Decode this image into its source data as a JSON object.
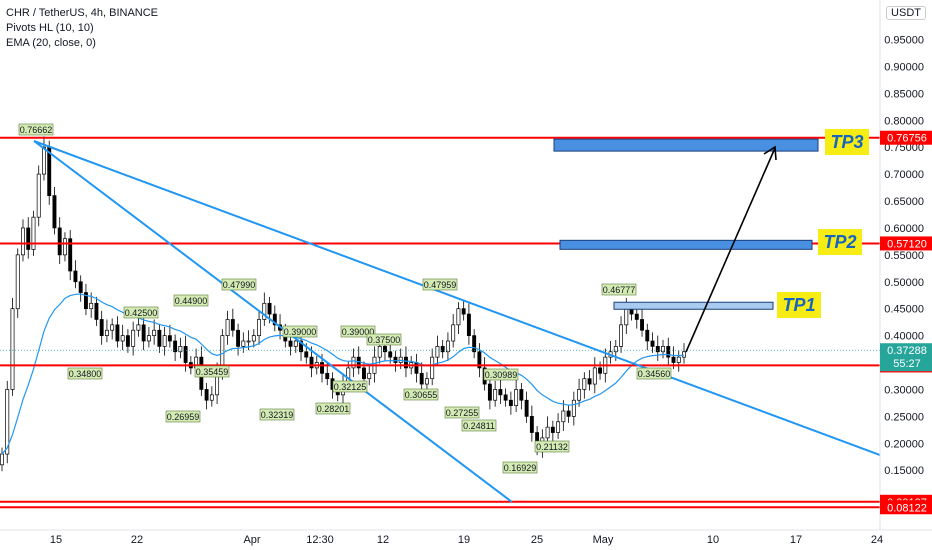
{
  "header": {
    "symbol_line": "CHR / TetherUS, 4h, BINANCE",
    "indicator_1": "Pivots HL (10, 10)",
    "indicator_2": "EMA (20, close, 0)",
    "currency_button": "USDT"
  },
  "colors": {
    "candle": "#000000",
    "ema": "#2196f3",
    "trendline": "#2196f3",
    "level_line": "#ff0000",
    "pivot_label_bg": "#d4ecb4",
    "tp_box_fill": "#4a90e2",
    "tp_label_bg": "#f7ec13",
    "tp_label_text": "#1565c0",
    "current_price_bg": "#26a69a"
  },
  "chart_data": {
    "type": "candlestick",
    "y_axis": {
      "ticks": [
        "0.95000",
        "0.90000",
        "0.85000",
        "0.80000",
        "0.75000",
        "0.70000",
        "0.65000",
        "0.60000",
        "0.55000",
        "0.50000",
        "0.45000",
        "0.40000",
        "0.35000",
        "0.30000",
        "0.25000",
        "0.20000",
        "0.15000"
      ],
      "ylim": [
        0.08,
        1.0
      ]
    },
    "x_axis": {
      "ticks": [
        "15",
        "22",
        "Apr",
        "12:30",
        "12",
        "19",
        "25",
        "May",
        "10",
        "17",
        "24"
      ]
    },
    "price_levels": [
      {
        "label": "0.76756",
        "value": 0.76756
      },
      {
        "label": "0.57120",
        "value": 0.5712
      },
      {
        "label": "0.34463",
        "value": 0.34463
      },
      {
        "label": "0.09137",
        "value": 0.09137
      },
      {
        "label": "0.08122",
        "value": 0.08122
      }
    ],
    "current_price": {
      "label": "0.37288",
      "countdown": "55:27",
      "value": 0.37288
    },
    "pivot_labels": [
      "0.76662",
      "0.42500",
      "0.34800",
      "0.44900",
      "0.35459",
      "0.26959",
      "0.47990",
      "0.39000",
      "0.32319",
      "0.28201",
      "0.39000",
      "0.32125",
      "0.37500",
      "0.30655",
      "0.47959",
      "0.27255",
      "0.30989",
      "0.24811",
      "0.21132",
      "0.16929",
      "0.46777",
      "0.34560"
    ],
    "targets": [
      "TP1",
      "TP2",
      "TP3"
    ],
    "close_series": [
      0.18,
      0.3,
      0.45,
      0.55,
      0.6,
      0.56,
      0.62,
      0.7,
      0.75,
      0.66,
      0.6,
      0.55,
      0.58,
      0.52,
      0.5,
      0.48,
      0.45,
      0.46,
      0.43,
      0.4,
      0.41,
      0.42,
      0.39,
      0.4,
      0.38,
      0.41,
      0.42,
      0.39,
      0.4,
      0.41,
      0.38,
      0.4,
      0.39,
      0.37,
      0.38,
      0.35,
      0.34,
      0.36,
      0.3,
      0.28,
      0.29,
      0.33,
      0.4,
      0.43,
      0.41,
      0.38,
      0.39,
      0.39,
      0.4,
      0.43,
      0.46,
      0.44,
      0.42,
      0.41,
      0.39,
      0.38,
      0.39,
      0.37,
      0.36,
      0.34,
      0.35,
      0.33,
      0.32,
      0.3,
      0.29,
      0.31,
      0.34,
      0.36,
      0.34,
      0.32,
      0.33,
      0.36,
      0.38,
      0.37,
      0.36,
      0.35,
      0.36,
      0.34,
      0.35,
      0.33,
      0.31,
      0.32,
      0.36,
      0.38,
      0.37,
      0.39,
      0.42,
      0.45,
      0.44,
      0.4,
      0.37,
      0.34,
      0.31,
      0.28,
      0.3,
      0.29,
      0.28,
      0.27,
      0.3,
      0.28,
      0.25,
      0.22,
      0.19,
      0.21,
      0.23,
      0.22,
      0.24,
      0.26,
      0.25,
      0.28,
      0.3,
      0.32,
      0.31,
      0.34,
      0.33,
      0.36,
      0.37,
      0.38,
      0.42,
      0.45,
      0.44,
      0.43,
      0.41,
      0.39,
      0.38,
      0.37,
      0.38,
      0.36,
      0.35,
      0.36,
      0.37
    ]
  }
}
